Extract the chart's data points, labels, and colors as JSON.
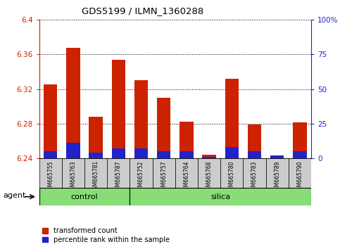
{
  "title": "GDS5199 / ILMN_1360288",
  "samples": [
    "GSM665755",
    "GSM665763",
    "GSM665781",
    "GSM665787",
    "GSM665752",
    "GSM665757",
    "GSM665764",
    "GSM665768",
    "GSM665780",
    "GSM665783",
    "GSM665789",
    "GSM665790"
  ],
  "groups": [
    "control",
    "control",
    "control",
    "control",
    "silica",
    "silica",
    "silica",
    "silica",
    "silica",
    "silica",
    "silica",
    "silica"
  ],
  "transformed_count": [
    6.325,
    6.368,
    6.288,
    6.354,
    6.33,
    6.31,
    6.282,
    6.244,
    6.332,
    6.279,
    6.242,
    6.281
  ],
  "percentile_rank": [
    5,
    11,
    4,
    7,
    7,
    5,
    5,
    1,
    8,
    5,
    2,
    5
  ],
  "ylim_left": [
    6.24,
    6.4
  ],
  "ylim_right": [
    0,
    100
  ],
  "yticks_left": [
    6.24,
    6.28,
    6.32,
    6.36,
    6.4
  ],
  "yticks_right": [
    0,
    25,
    50,
    75,
    100
  ],
  "ytick_labels_right": [
    "0",
    "25",
    "50",
    "75",
    "100%"
  ],
  "bar_width": 0.6,
  "red_color": "#cc2200",
  "blue_color": "#2222cc",
  "control_color": "#88dd77",
  "silica_color": "#88dd77",
  "bg_color": "#cccccc",
  "agent_label": "agent",
  "legend_red": "transformed count",
  "legend_blue": "percentile rank within the sample",
  "base_value": 6.24,
  "n_control": 4,
  "n_silica": 8
}
